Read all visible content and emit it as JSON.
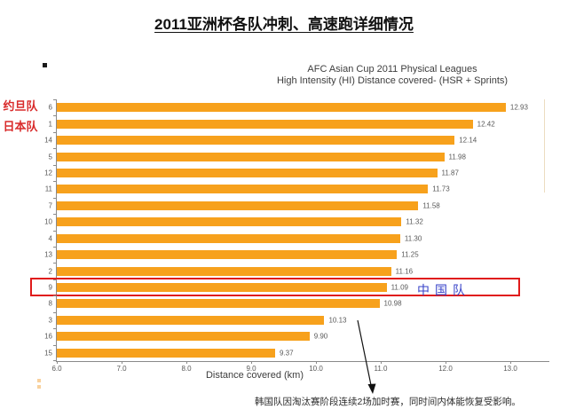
{
  "page_title": "2011亚洲杯各队冲刺、高速跑详细情况",
  "chart_header": {
    "title_line1": "AFC Asian Cup 2011 Physical Leagues",
    "title_line2": "High Intensity (HI) Distance covered- (HSR + Sprints)"
  },
  "annotations": {
    "left_label_line1": "约旦队",
    "left_label_line2": "日本队",
    "highlight_label": "中国队",
    "footnote": "韩国队因淘汰赛阶段连续2场加时赛，同时间内体能恢复受影响。"
  },
  "colors": {
    "bar": "#F7A11C",
    "highlight_box": "#E01B1B",
    "highlight_text": "#3742C8",
    "left_label": "#D92B2B"
  },
  "chart_data": {
    "type": "bar",
    "orientation": "horizontal",
    "title": "AFC Asian Cup 2011 Physical Leagues — High Intensity (HI) Distance covered- (HSR + Sprints)",
    "categories": [
      "6",
      "1",
      "14",
      "5",
      "12",
      "11",
      "7",
      "10",
      "4",
      "13",
      "2",
      "9",
      "8",
      "3",
      "16",
      "15"
    ],
    "values": [
      12.93,
      12.42,
      12.14,
      11.98,
      11.87,
      11.73,
      11.58,
      11.32,
      11.3,
      11.25,
      11.16,
      11.09,
      10.98,
      10.13,
      9.9,
      9.37
    ],
    "highlighted_category": "9",
    "highlighted_value": 11.09,
    "xlabel": "Distance covered (km)",
    "xlim": [
      6.0,
      13.0
    ],
    "xticks": [
      6.0,
      7.0,
      8.0,
      9.0,
      10.0,
      11.0,
      12.0,
      13.0
    ],
    "grid": false,
    "legend": false
  }
}
